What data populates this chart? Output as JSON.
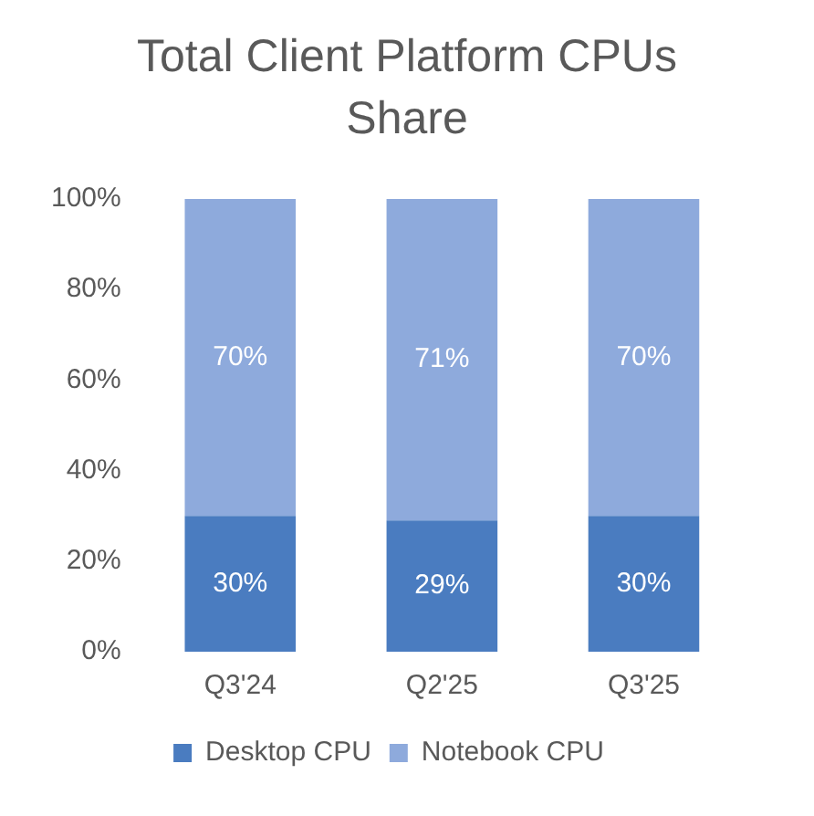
{
  "chart_data": {
    "type": "bar",
    "title": "Total Client Platform CPUs Share",
    "stacked": true,
    "categories": [
      "Q3'24",
      "Q2'25",
      "Q3'25"
    ],
    "series": [
      {
        "name": "Desktop CPU",
        "color": "#4a7cc0",
        "values": [
          30,
          29,
          30
        ],
        "value_labels": [
          "30%",
          "29%",
          "30%"
        ]
      },
      {
        "name": "Notebook CPU",
        "color": "#8eaadc",
        "values": [
          70,
          71,
          70
        ],
        "value_labels": [
          "70%",
          "71%",
          "70%"
        ]
      }
    ],
    "ylim": [
      0,
      100
    ],
    "yticks": [
      {
        "value": 0,
        "label": "0%"
      },
      {
        "value": 20,
        "label": "20%"
      },
      {
        "value": 40,
        "label": "40%"
      },
      {
        "value": 60,
        "label": "60%"
      },
      {
        "value": 80,
        "label": "80%"
      },
      {
        "value": 100,
        "label": "100%"
      }
    ],
    "grid": false,
    "legend": "bottom"
  }
}
